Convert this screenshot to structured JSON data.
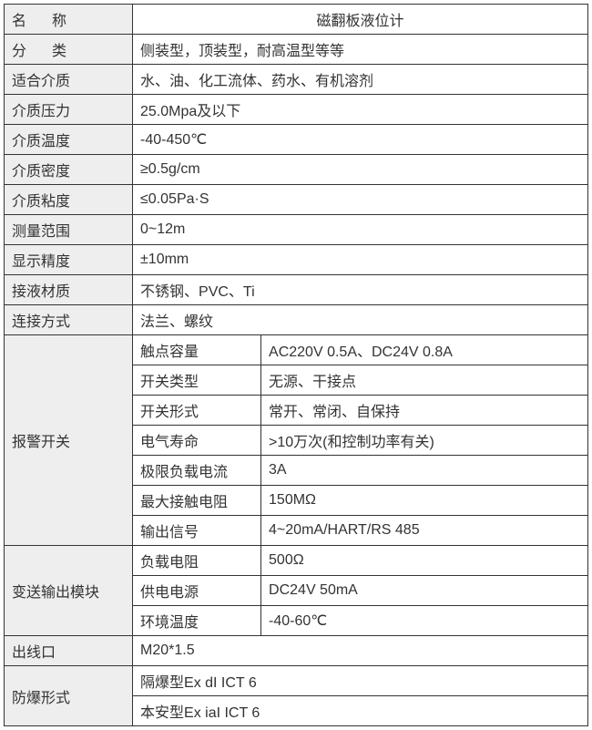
{
  "colors": {
    "label_bg": "#eeeeee",
    "border": "#333333",
    "text": "#333333",
    "background": "#ffffff"
  },
  "fontsize": 16,
  "rows": {
    "name": {
      "label": "名称",
      "value": "磁翻板液位计"
    },
    "category": {
      "label": "分类",
      "value": "侧装型，顶装型，耐高温型等等"
    },
    "medium": {
      "label": "适合介质",
      "value": "水、油、化工流体、药水、有机溶剂"
    },
    "pressure": {
      "label": "介质压力",
      "value": "25.0Mpa及以下"
    },
    "temperature": {
      "label": "介质温度",
      "value": "-40-450℃"
    },
    "density": {
      "label": "介质密度",
      "value": "≥0.5g/cm"
    },
    "viscosity": {
      "label": "介质粘度",
      "value": "≤0.05Pa·S"
    },
    "range": {
      "label": "测量范围",
      "value": "0~12m"
    },
    "accuracy": {
      "label": "显示精度",
      "value": "±10mm"
    },
    "material": {
      "label": "接液材质",
      "value": "不锈钢、PVC、Ti"
    },
    "connection": {
      "label": "连接方式",
      "value": "法兰、螺纹"
    },
    "alarm": {
      "label": "报警开关",
      "sub": [
        {
          "label": "触点容量",
          "value": "AC220V  0.5A、DC24V  0.8A"
        },
        {
          "label": "开关类型",
          "value": "无源、干接点"
        },
        {
          "label": "开关形式",
          "value": "常开、常闭、自保持"
        },
        {
          "label": "电气寿命",
          "value": ">10万次(和控制功率有关)"
        },
        {
          "label": "极限负载电流",
          "value": "3A"
        },
        {
          "label": "最大接触电阻",
          "value": "150MΩ"
        },
        {
          "label": "输出信号",
          "value": "4~20mA/HART/RS 485"
        }
      ]
    },
    "output": {
      "label": "变送输出模块",
      "sub": [
        {
          "label": "负载电阻",
          "value": "500Ω"
        },
        {
          "label": "供电电源",
          "value": "DC24V  50mA"
        },
        {
          "label": "环境温度",
          "value": "-40-60℃"
        }
      ]
    },
    "outlet": {
      "label": "出线口",
      "value": "M20*1.5"
    },
    "explosion": {
      "label": "防爆形式",
      "values": [
        "隔爆型Ex dI ICT 6",
        "本安型Ex iaI ICT 6"
      ]
    }
  }
}
